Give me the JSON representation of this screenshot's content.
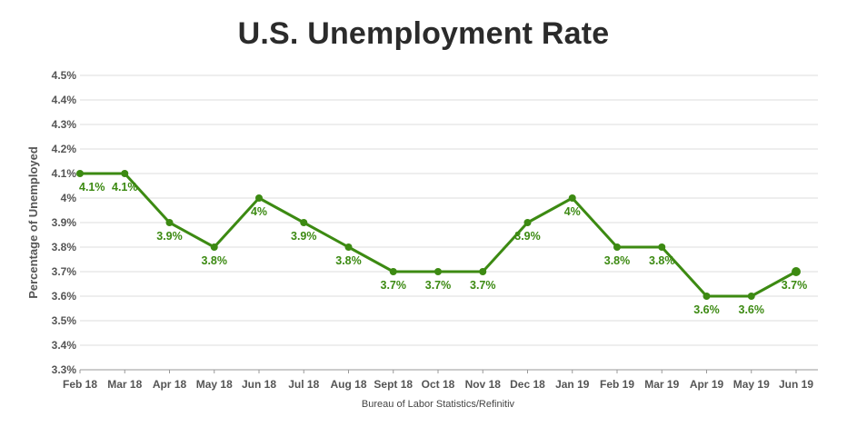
{
  "chart_data": {
    "type": "line",
    "title": "U.S. Unemployment Rate",
    "xlabel": "",
    "ylabel": "Percentage of Unemployed",
    "source": "Bureau of Labor Statistics/Refinitiv",
    "categories": [
      "Feb 18",
      "Mar 18",
      "Apr 18",
      "May 18",
      "Jun 18",
      "Jul 18",
      "Aug 18",
      "Sept 18",
      "Oct 18",
      "Nov 18",
      "Dec 18",
      "Jan 19",
      "Feb 19",
      "Mar 19",
      "Apr 19",
      "May 19",
      "Jun 19"
    ],
    "series": [
      {
        "name": "",
        "values": [
          4.1,
          4.1,
          3.9,
          3.8,
          4.0,
          3.9,
          3.8,
          3.7,
          3.7,
          3.7,
          3.9,
          4.0,
          3.8,
          3.8,
          3.6,
          3.6,
          3.7
        ],
        "labels": [
          "4.1%",
          "4.1%",
          "3.9%",
          "3.8%",
          "4%",
          "3.9%",
          "3.8%",
          "3.7%",
          "3.7%",
          "3.7%",
          "3.9%",
          "4%",
          "3.8%",
          "3.8%",
          "3.6%",
          "3.6%",
          "3.7%"
        ],
        "color": "#3c8a12"
      }
    ],
    "ylim": [
      3.3,
      4.5
    ],
    "yticks": [
      3.3,
      3.4,
      3.5,
      3.6,
      3.7,
      3.8,
      3.9,
      4.0,
      4.1,
      4.2,
      4.3,
      4.4,
      4.5
    ],
    "ytick_labels": [
      "3.3%",
      "3.4%",
      "3.5%",
      "3.6%",
      "3.7%",
      "3.8%",
      "3.9%",
      "4%",
      "4.1%",
      "4.2%",
      "4.3%",
      "4.4%",
      "4.5%"
    ],
    "grid": true,
    "legend": "none"
  }
}
